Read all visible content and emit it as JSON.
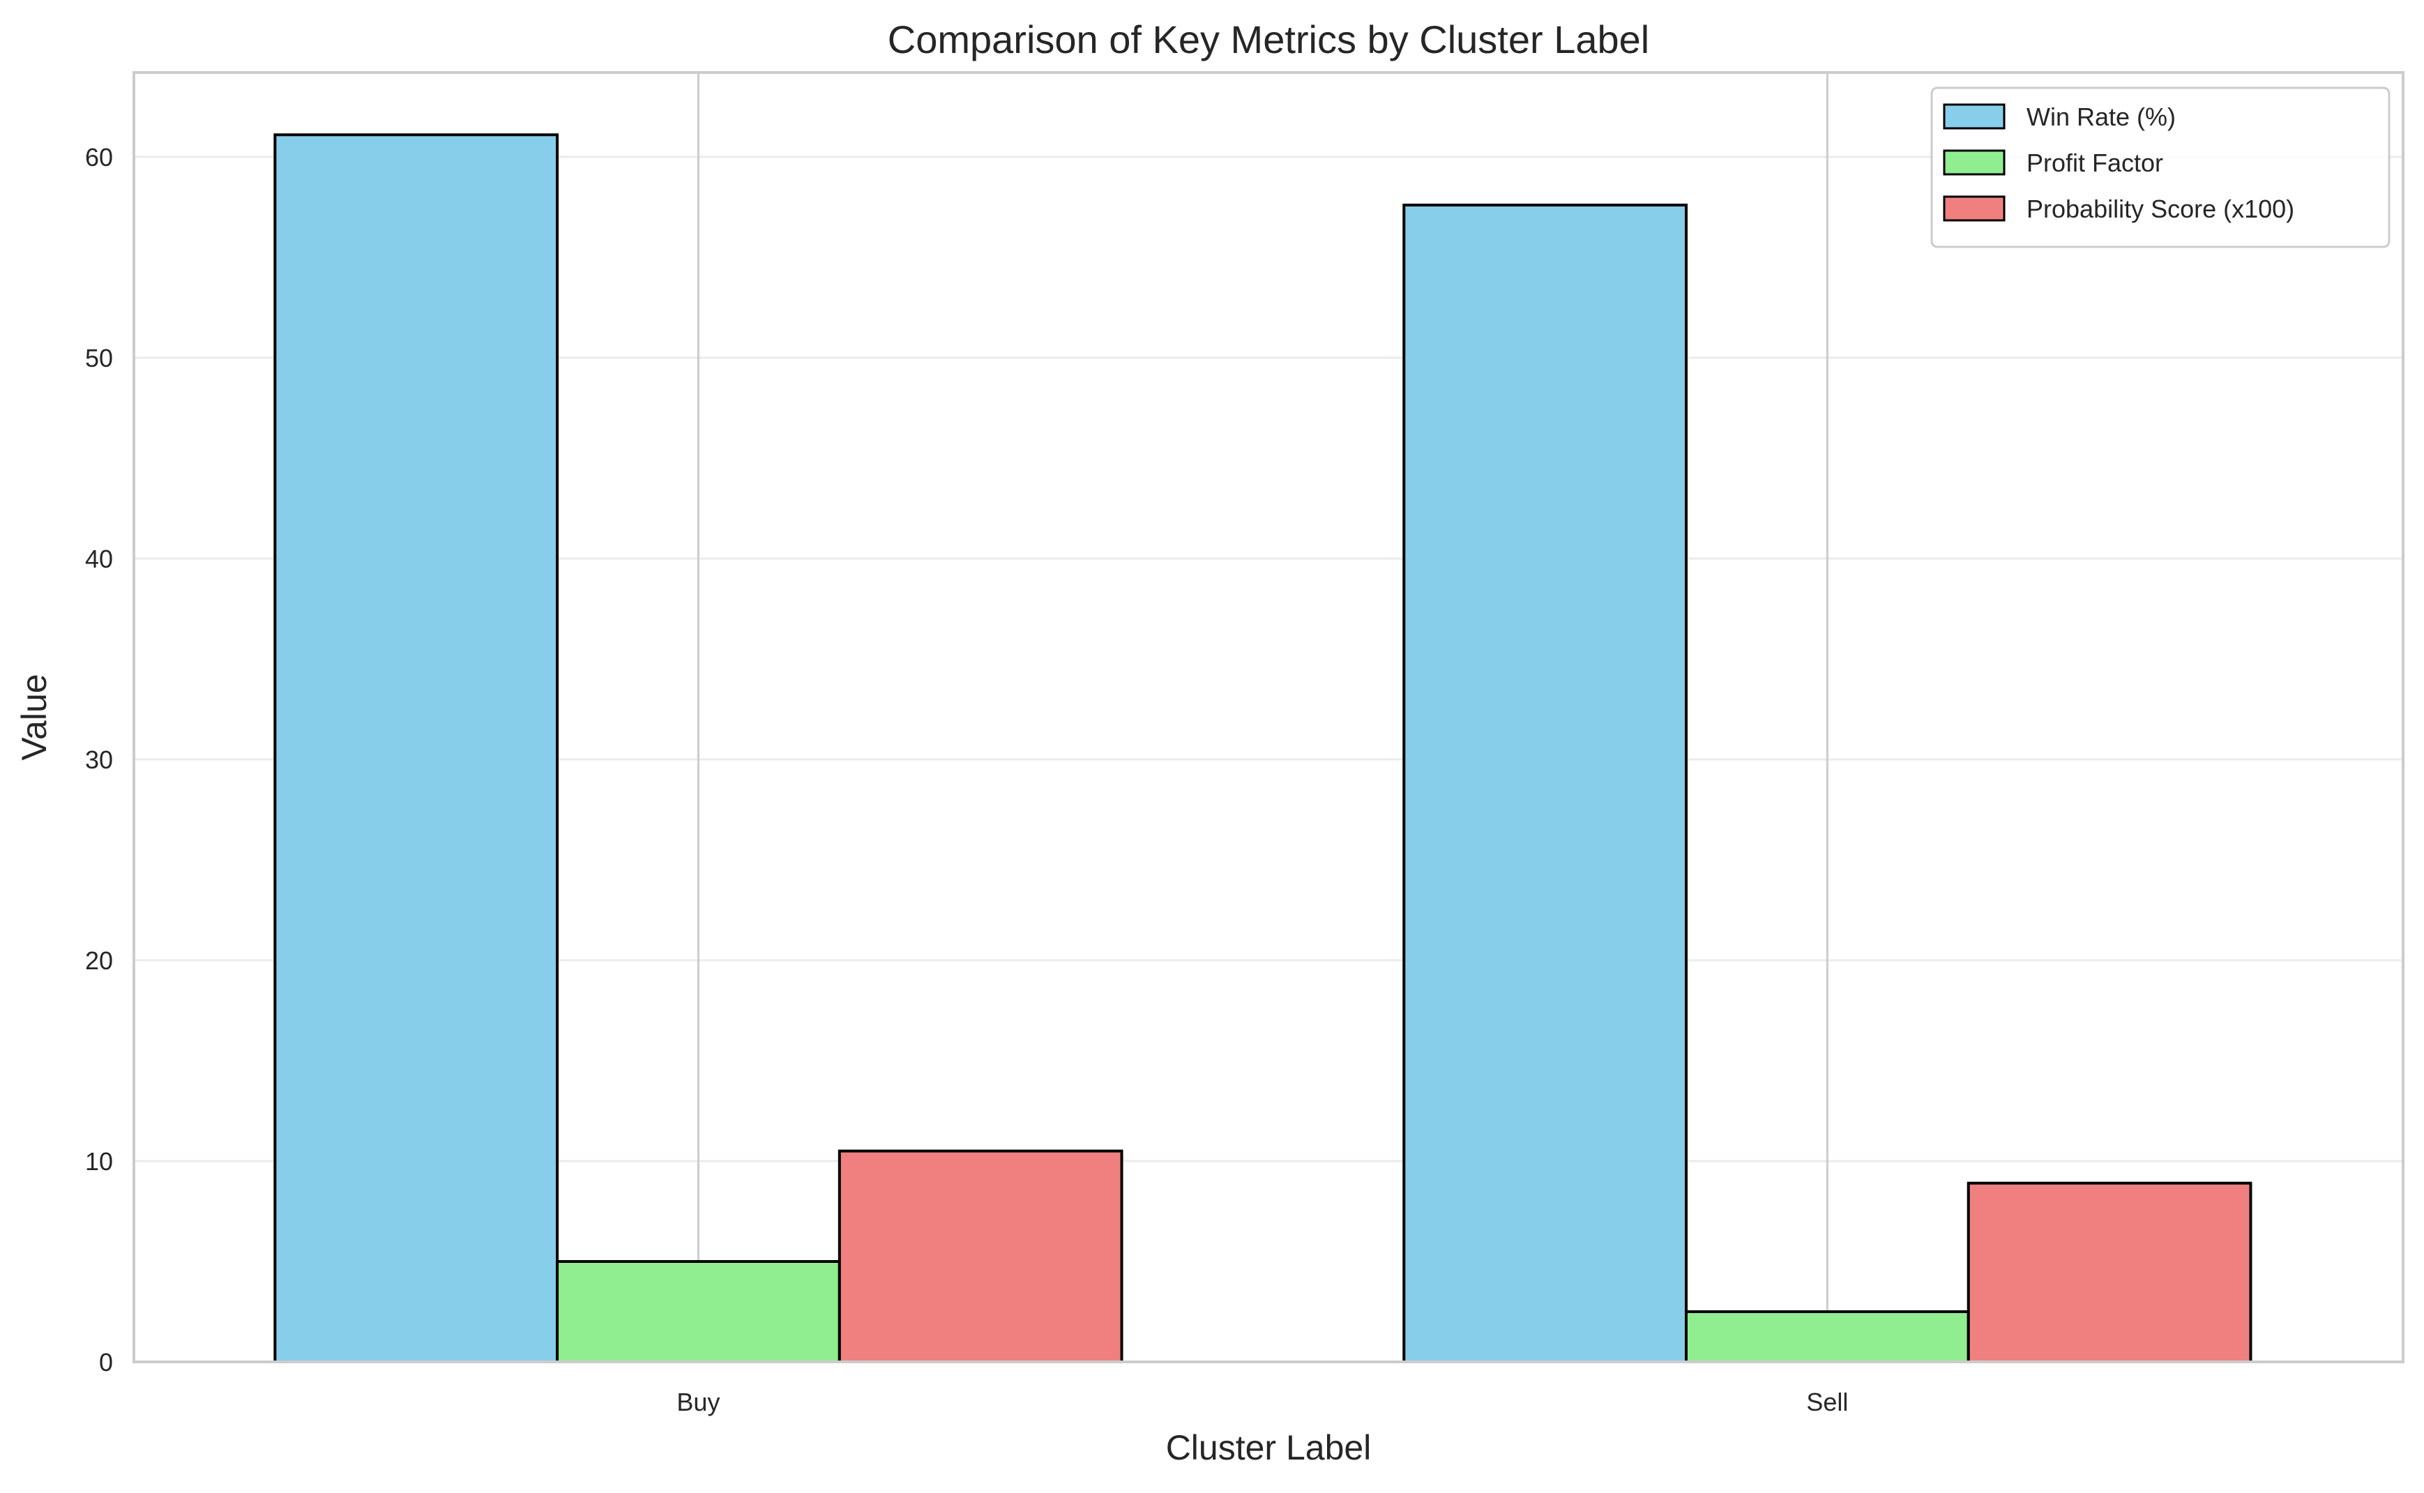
{
  "chart_data": {
    "type": "bar",
    "title": "Comparison of Key Metrics by Cluster Label",
    "xlabel": "Cluster Label",
    "ylabel": "Value",
    "categories": [
      "Buy",
      "Sell"
    ],
    "series": [
      {
        "name": "Win Rate (%)",
        "values": [
          61.1,
          57.6
        ],
        "color": "#87CEEB"
      },
      {
        "name": "Profit Factor",
        "values": [
          5.0,
          2.5
        ],
        "color": "#90EE90"
      },
      {
        "name": "Probability Score (x100)",
        "values": [
          10.5,
          8.9
        ],
        "color": "#F08080"
      }
    ],
    "ylim": [
      0,
      64.2
    ],
    "yticks": [
      0,
      10,
      20,
      30,
      40,
      50,
      60
    ],
    "grid": true,
    "legend_position": "top-right"
  }
}
